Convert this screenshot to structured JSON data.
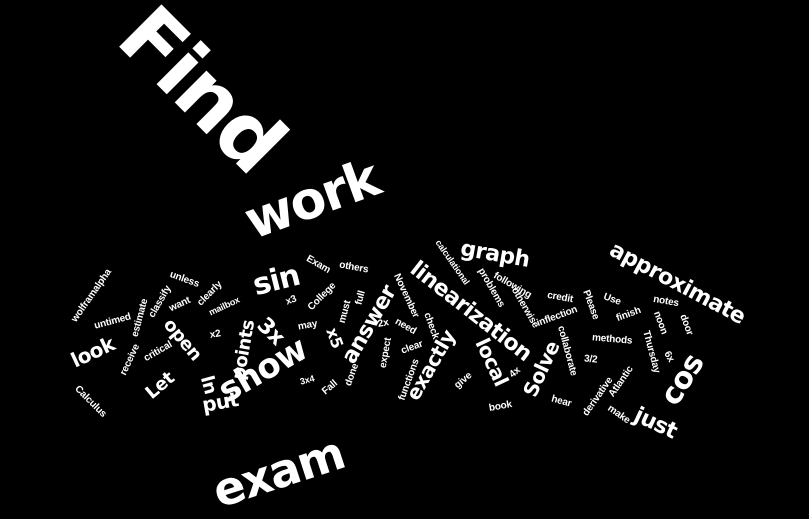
{
  "words": [
    {
      "text": "Find"
    },
    {
      "text": "work"
    },
    {
      "text": "exam"
    },
    {
      "text": "show"
    },
    {
      "text": "approximate"
    },
    {
      "text": "linearization"
    },
    {
      "text": "cos"
    },
    {
      "text": "sin"
    },
    {
      "text": "graph"
    },
    {
      "text": "answer"
    },
    {
      "text": "exactly"
    },
    {
      "text": "local"
    },
    {
      "text": "Solve"
    },
    {
      "text": "just"
    },
    {
      "text": "3x"
    },
    {
      "text": "points"
    },
    {
      "text": "put"
    },
    {
      "text": "look"
    },
    {
      "text": "open"
    },
    {
      "text": "Let"
    },
    {
      "text": "ln"
    },
    {
      "text": "x5"
    },
    {
      "text": "wolframalpha"
    },
    {
      "text": "unless"
    },
    {
      "text": "classify"
    },
    {
      "text": "clearly"
    },
    {
      "text": "want"
    },
    {
      "text": "mailbox"
    },
    {
      "text": "estimate"
    },
    {
      "text": "untimed"
    },
    {
      "text": "receive"
    },
    {
      "text": "critical"
    },
    {
      "text": "Calculus"
    },
    {
      "text": "x2"
    },
    {
      "text": "x3"
    },
    {
      "text": "3x4"
    },
    {
      "text": "Exam"
    },
    {
      "text": "others"
    },
    {
      "text": "College"
    },
    {
      "text": "may"
    },
    {
      "text": "must"
    },
    {
      "text": "full"
    },
    {
      "text": "done"
    },
    {
      "text": "Fall"
    },
    {
      "text": "2x"
    },
    {
      "text": "November"
    },
    {
      "text": "need"
    },
    {
      "text": "check"
    },
    {
      "text": "clear"
    },
    {
      "text": "expect"
    },
    {
      "text": "functions"
    },
    {
      "text": "give"
    },
    {
      "text": "calculational"
    },
    {
      "text": "problems"
    },
    {
      "text": "following"
    },
    {
      "text": "otherwise"
    },
    {
      "text": "credit"
    },
    {
      "text": "inflection"
    },
    {
      "text": "collaborate"
    },
    {
      "text": "4x"
    },
    {
      "text": "book"
    },
    {
      "text": "hear"
    },
    {
      "text": "3/2"
    },
    {
      "text": "Atlantic"
    },
    {
      "text": "derivative"
    },
    {
      "text": "make"
    },
    {
      "text": "Please"
    },
    {
      "text": "finish"
    },
    {
      "text": "Use"
    },
    {
      "text": "methods"
    },
    {
      "text": "noon"
    },
    {
      "text": "notes"
    },
    {
      "text": "door"
    },
    {
      "text": "Thursday"
    },
    {
      "text": "6x"
    }
  ]
}
